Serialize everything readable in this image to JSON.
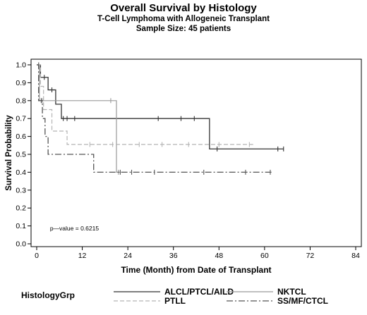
{
  "header": {
    "title": "Overall Survival by Histology",
    "subtitle": "T-Cell Lymphoma with Allogeneic Transplant",
    "sample_size": "Sample Size: 45 patients"
  },
  "legend": {
    "title": "HistologyGrp"
  },
  "annotation": "p—value = 0.6215",
  "chart_data": {
    "type": "line",
    "step": true,
    "xlabel": "Time (Month) from Date of Transplant",
    "ylabel": "Survival Probability",
    "xlim": [
      0,
      84
    ],
    "ylim": [
      0,
      1
    ],
    "xticks": [
      0,
      12,
      24,
      36,
      48,
      60,
      72,
      84
    ],
    "yticks": [
      0.0,
      0.1,
      0.2,
      0.3,
      0.4,
      0.5,
      0.6,
      0.7,
      0.8,
      0.9,
      1.0
    ],
    "xtick_labels": [
      "0",
      "12",
      "24",
      "36",
      "48",
      "60",
      "72",
      "84"
    ],
    "ytick_labels": [
      "0.0",
      "0.1",
      "0.2",
      "0.3",
      "0.4",
      "0.5",
      "0.6",
      "0.7",
      "0.8",
      "0.9",
      "1.0"
    ],
    "legend_position": "bottom",
    "grid": false,
    "series": [
      {
        "name": "ALCL/PTCL/AILD",
        "color": "#333333",
        "dash": "",
        "width": 1.3,
        "steps": [
          [
            0,
            1.0
          ],
          [
            1,
            0.93
          ],
          [
            3,
            0.86
          ],
          [
            5,
            0.78
          ],
          [
            6.5,
            0.7
          ],
          [
            45.5,
            0.53
          ],
          [
            65,
            0.53
          ]
        ],
        "censors": [
          [
            0.5,
            1.0
          ],
          [
            2,
            0.93
          ],
          [
            4,
            0.86
          ],
          [
            7,
            0.7
          ],
          [
            8,
            0.7
          ],
          [
            10,
            0.7
          ],
          [
            32,
            0.7
          ],
          [
            38,
            0.7
          ],
          [
            41.5,
            0.7
          ],
          [
            47.5,
            0.53
          ],
          [
            63.5,
            0.53
          ],
          [
            65,
            0.53
          ]
        ]
      },
      {
        "name": "NKTCL",
        "color": "#9a9a9a",
        "dash": "",
        "width": 1.2,
        "steps": [
          [
            0,
            1.0
          ],
          [
            0.7,
            0.8
          ],
          [
            21,
            0.4
          ],
          [
            22,
            0.4
          ]
        ],
        "censors": [
          [
            1.5,
            0.8
          ],
          [
            19.5,
            0.8
          ],
          [
            21.5,
            0.4
          ]
        ]
      },
      {
        "name": "PTLL",
        "color": "#b5b5b5",
        "dash": "6,3",
        "width": 1.2,
        "steps": [
          [
            0,
            1.0
          ],
          [
            1,
            0.88
          ],
          [
            1.8,
            0.75
          ],
          [
            4,
            0.63
          ],
          [
            8,
            0.555
          ],
          [
            57,
            0.555
          ]
        ],
        "censors": [
          [
            0.6,
            1.0
          ],
          [
            14,
            0.555
          ],
          [
            20,
            0.555
          ],
          [
            27,
            0.555
          ],
          [
            33,
            0.555
          ],
          [
            40,
            0.555
          ],
          [
            48,
            0.555
          ],
          [
            56,
            0.555
          ]
        ]
      },
      {
        "name": "SS/MF/CTCL",
        "color": "#555555",
        "dash": "9,3,2,3",
        "width": 1.3,
        "steps": [
          [
            0,
            1.0
          ],
          [
            0.5,
            0.8
          ],
          [
            1.5,
            0.7
          ],
          [
            2.2,
            0.6
          ],
          [
            3,
            0.5
          ],
          [
            15,
            0.4
          ],
          [
            62,
            0.4
          ]
        ],
        "censors": [
          [
            1.2,
            0.8
          ],
          [
            22,
            0.4
          ],
          [
            25,
            0.4
          ],
          [
            31,
            0.4
          ],
          [
            44,
            0.4
          ],
          [
            55,
            0.4
          ],
          [
            61.5,
            0.4
          ]
        ]
      }
    ]
  }
}
